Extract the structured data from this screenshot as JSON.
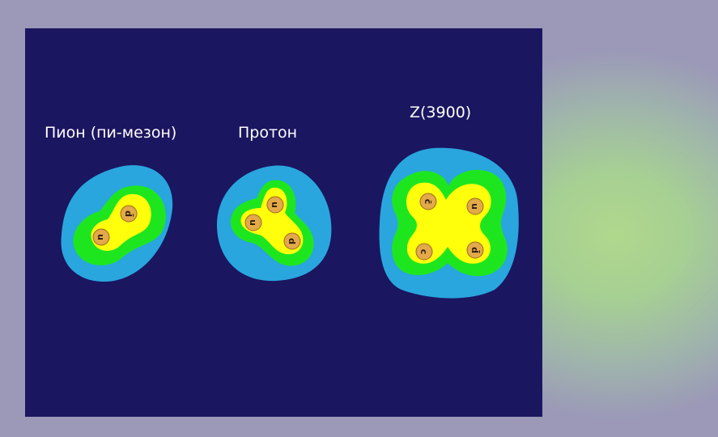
{
  "titles": {
    "pion": "Пион (пи-мезон)",
    "proton": "Протон",
    "z3900": "Z(3900)"
  },
  "quarks": {
    "pion": [
      "d̄",
      "u"
    ],
    "proton": [
      "u",
      "u",
      "d"
    ],
    "z3900": [
      "c̄",
      "u",
      "c",
      "d̄"
    ]
  },
  "colors": {
    "background": "#1a1660",
    "outer_cloud": "#29a6de",
    "middle_cloud": "#1ee61e",
    "inner_cloud": "#ffff0c",
    "quark": "#e3a94a"
  }
}
